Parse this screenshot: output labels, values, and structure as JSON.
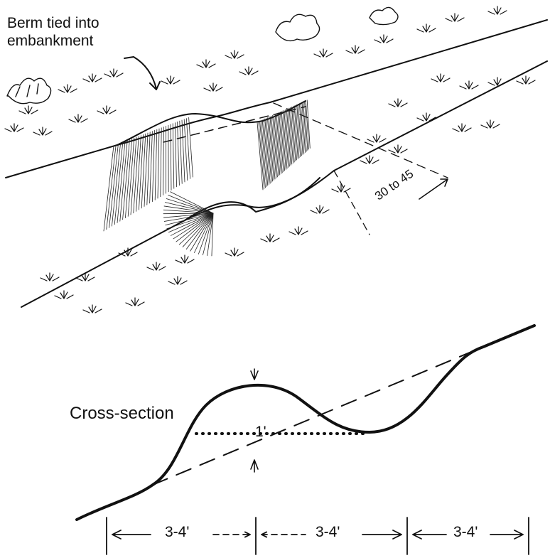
{
  "labels": {
    "berm_line1": "Berm tied into",
    "berm_line2": "embankment",
    "angle": "30 to 45",
    "cross_section": "Cross-section",
    "height": "1'"
  },
  "dimensions": [
    "3-4'",
    "3-4'",
    "3-4'"
  ],
  "colors": {
    "ink": "#111111",
    "background": "#ffffff"
  },
  "vegetation_tufts": 44
}
